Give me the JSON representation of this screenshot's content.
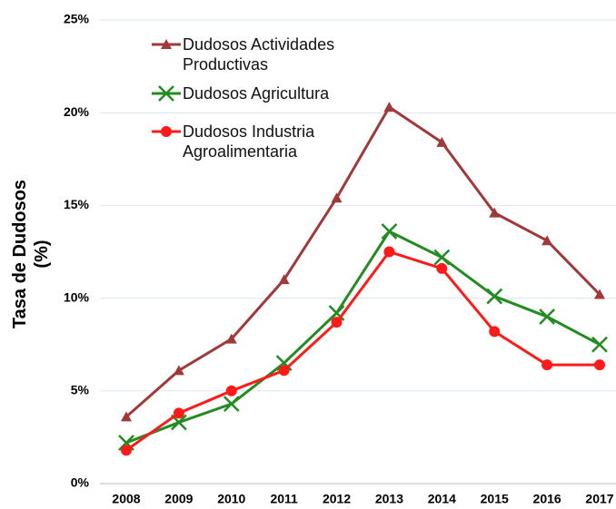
{
  "chart_data": {
    "type": "line",
    "y_label": "Tasa de Dudosos (%)",
    "categories": [
      "2008",
      "2009",
      "2010",
      "2011",
      "2012",
      "2013",
      "2014",
      "2015",
      "2016",
      "2017"
    ],
    "series": [
      {
        "name": "Dudosos Actividades Productivas",
        "color": "#a0393a",
        "marker": "triangle",
        "values": [
          3.6,
          6.1,
          7.8,
          11.0,
          15.4,
          20.3,
          18.4,
          14.6,
          13.1,
          10.2
        ]
      },
      {
        "name": "Dudosos Agricultura",
        "color": "#228b22",
        "marker": "x",
        "values": [
          2.2,
          3.3,
          4.3,
          6.5,
          9.2,
          13.6,
          12.2,
          10.1,
          9.0,
          7.5
        ]
      },
      {
        "name": "Dudosos Industria Agroalimentaria",
        "color": "#ff1a1a",
        "marker": "circle",
        "values": [
          1.8,
          3.8,
          5.0,
          6.1,
          8.7,
          12.5,
          11.6,
          8.2,
          6.4,
          6.4
        ]
      }
    ],
    "ylim": [
      0,
      25
    ],
    "yticks": [
      {
        "value": 0,
        "label": "0%"
      },
      {
        "value": 5,
        "label": "5%"
      },
      {
        "value": 10,
        "label": "10%"
      },
      {
        "value": 15,
        "label": "15%"
      },
      {
        "value": 20,
        "label": "20%"
      },
      {
        "value": 25,
        "label": "25%"
      }
    ],
    "grid": true
  }
}
